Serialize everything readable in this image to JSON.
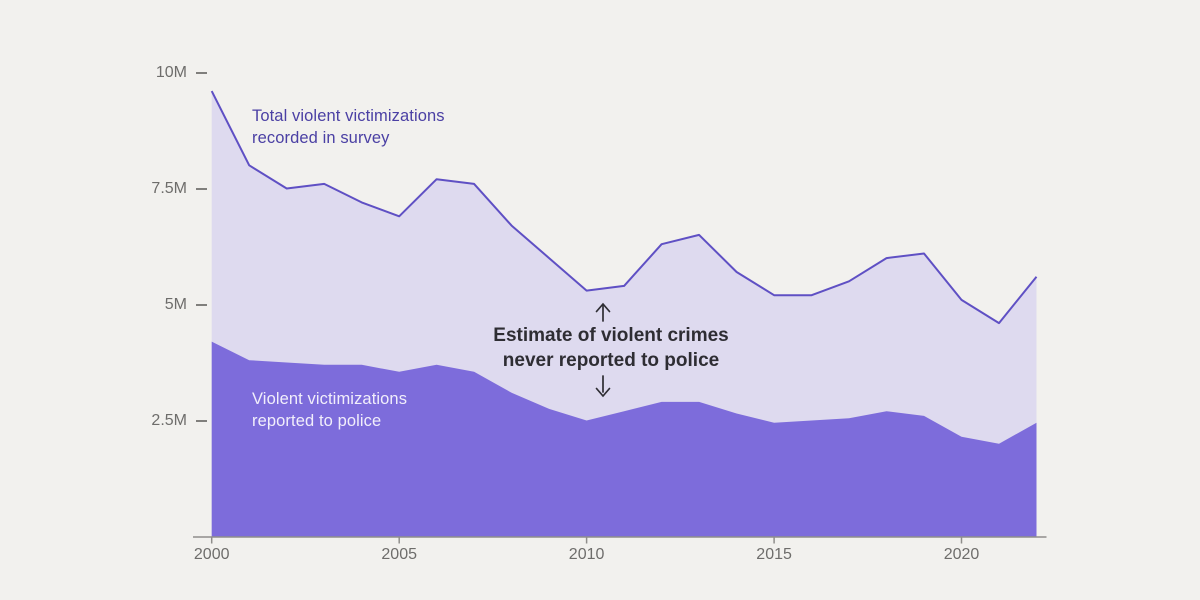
{
  "chart_data": {
    "type": "area",
    "title": "",
    "xlabel": "",
    "ylabel": "",
    "unit": "millions of victimizations",
    "x": [
      2000,
      2001,
      2002,
      2003,
      2004,
      2005,
      2006,
      2007,
      2008,
      2009,
      2010,
      2011,
      2012,
      2013,
      2014,
      2015,
      2016,
      2017,
      2018,
      2019,
      2020,
      2021,
      2022
    ],
    "series": [
      {
        "name": "Total violent victimizations recorded in survey",
        "values": [
          9.6,
          8.0,
          7.5,
          7.6,
          7.2,
          6.9,
          7.7,
          7.6,
          6.7,
          6.0,
          5.3,
          5.4,
          6.3,
          6.5,
          5.7,
          5.2,
          5.2,
          5.5,
          6.0,
          6.1,
          5.1,
          4.6,
          5.6
        ]
      },
      {
        "name": "Violent victimizations reported to police",
        "values": [
          4.2,
          3.8,
          3.75,
          3.7,
          3.7,
          3.55,
          3.7,
          3.55,
          3.1,
          2.75,
          2.5,
          2.7,
          2.9,
          2.9,
          2.65,
          2.45,
          2.5,
          2.55,
          2.7,
          2.6,
          2.15,
          2.0,
          2.45
        ]
      }
    ],
    "ylim": [
      0,
      10
    ],
    "xlim": [
      2000,
      2022
    ],
    "grid": false,
    "legend_position": "inline-annotations",
    "y_ticks": [
      {
        "value": 10,
        "label": "10M"
      },
      {
        "value": 7.5,
        "label": "7.5M"
      },
      {
        "value": 5,
        "label": "5M"
      },
      {
        "value": 2.5,
        "label": "2.5M"
      }
    ],
    "x_ticks": [
      {
        "value": 2000,
        "label": "2000"
      },
      {
        "value": 2005,
        "label": "2005"
      },
      {
        "value": 2010,
        "label": "2010"
      },
      {
        "value": 2015,
        "label": "2015"
      },
      {
        "value": 2020,
        "label": "2020"
      }
    ]
  },
  "annotations": {
    "total_label_line1": "Total violent victimizations",
    "total_label_line2": "recorded in survey",
    "reported_label_line1": "Violent victimizations",
    "reported_label_line2": "reported to police",
    "gap_label_line1": "Estimate of violent crimes",
    "gap_label_line2": "never reported to police"
  },
  "colors": {
    "background": "#f2f1ee",
    "total_fill": "#dedaef",
    "total_line": "#5f50c4",
    "reported_fill": "#7d6cdb",
    "purple_text": "#4b40a4",
    "white_text": "#f1eefb",
    "dark_text": "#2e2d33",
    "axis": "#8f8e8b",
    "tick_text": "#6e6d6b"
  }
}
